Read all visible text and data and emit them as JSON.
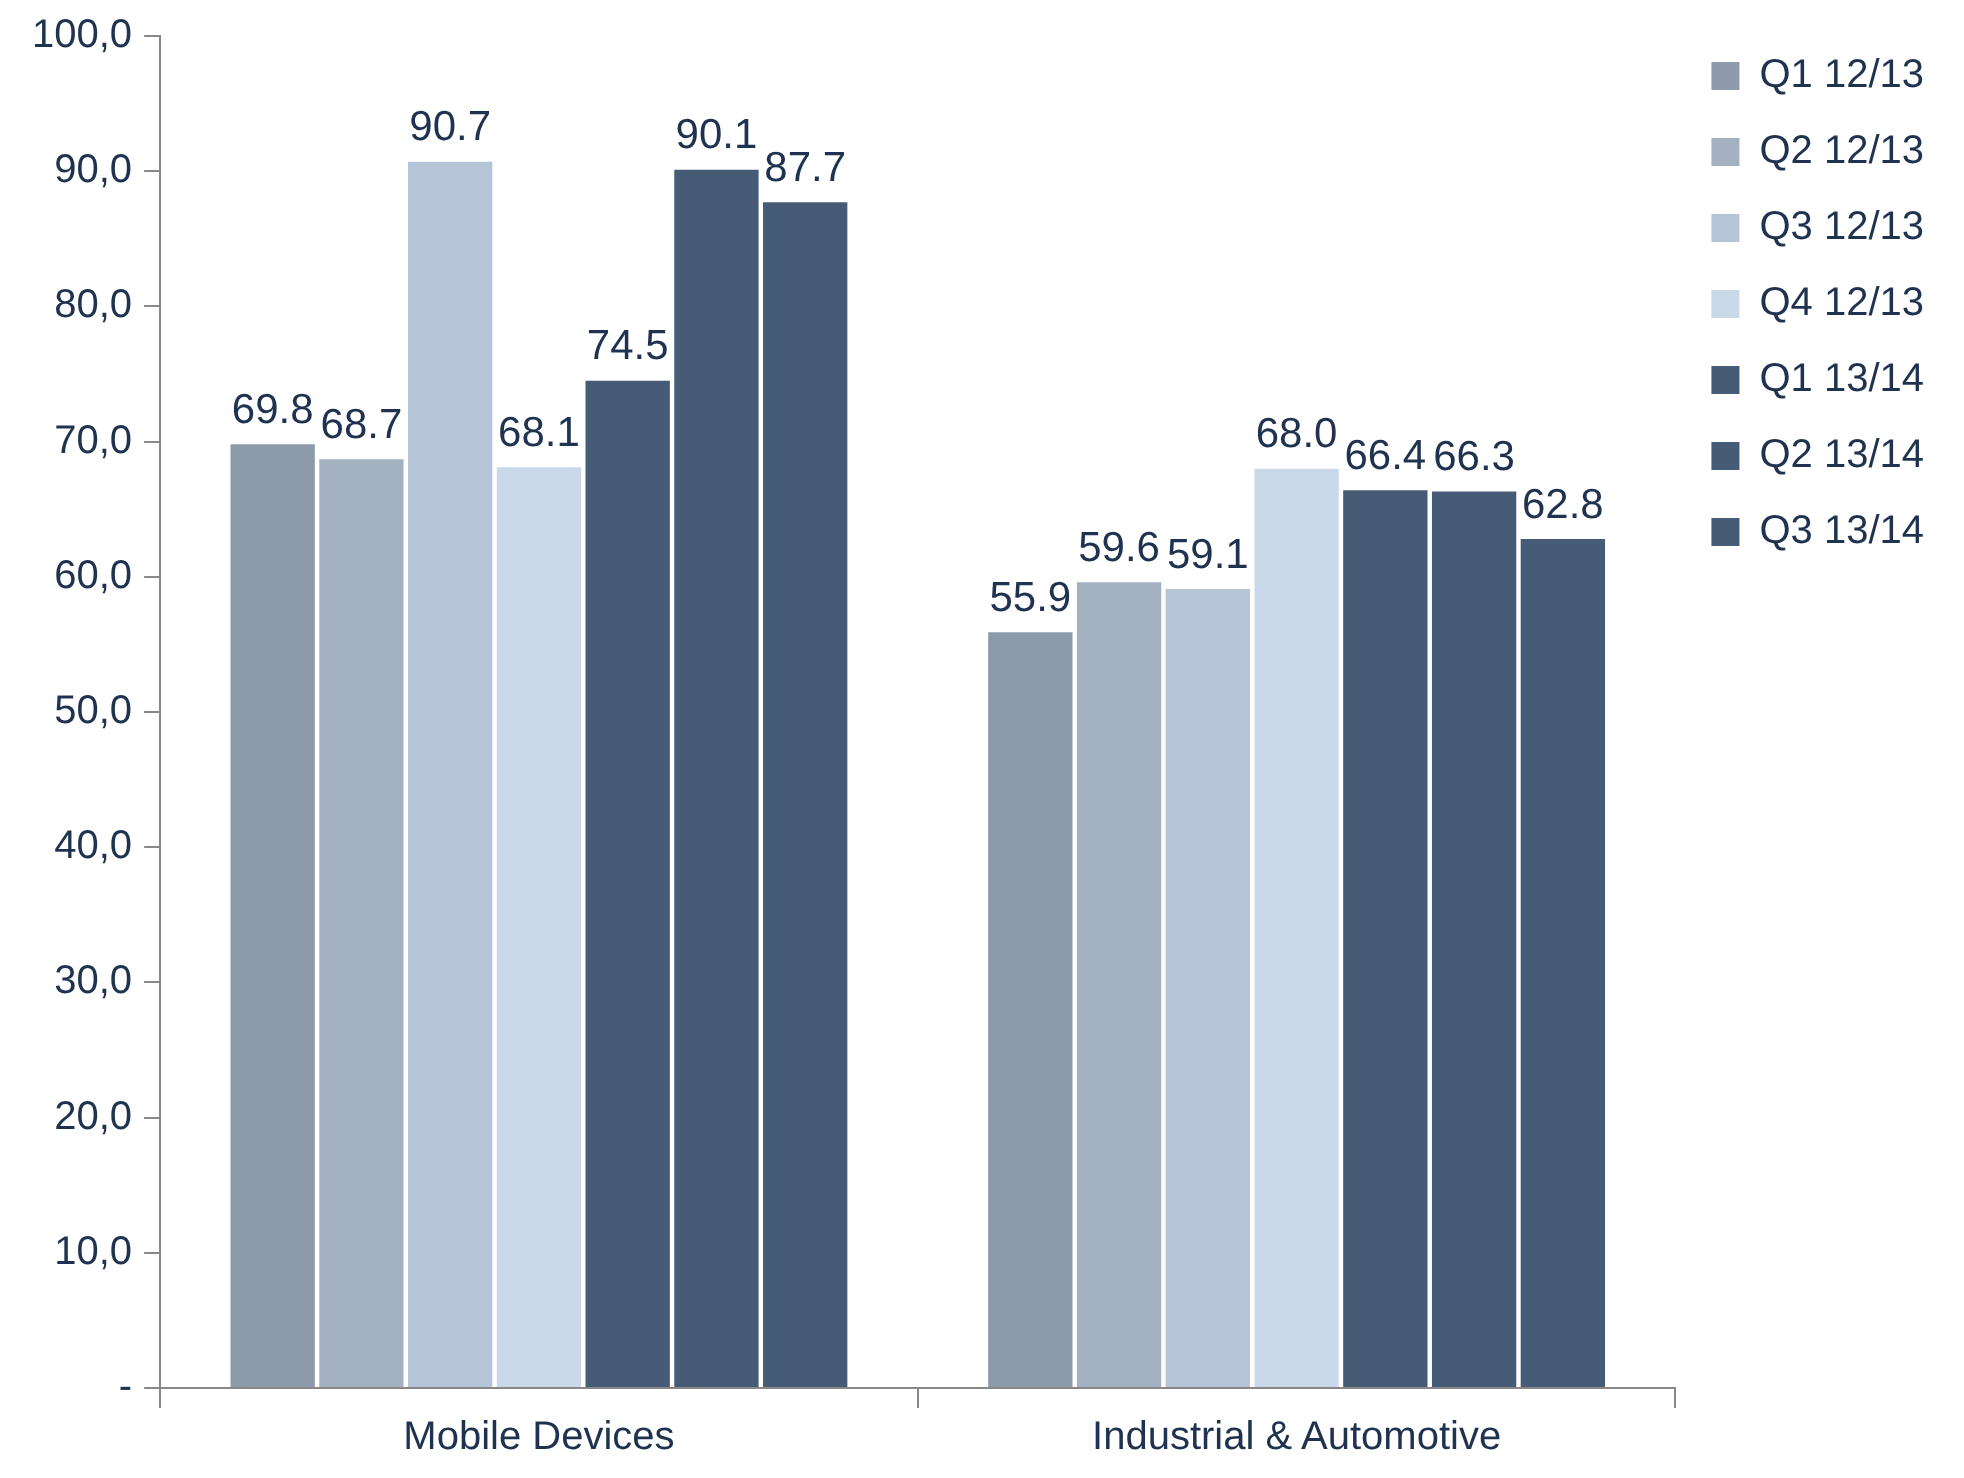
{
  "chart_data": {
    "type": "bar",
    "categories": [
      "Mobile Devices",
      "Industrial & Automotive"
    ],
    "series": [
      {
        "name": "Q1 12/13",
        "color": "#8c9aa9",
        "values": [
          69.8,
          55.9
        ],
        "value_labels": [
          "69.8",
          "55.9"
        ]
      },
      {
        "name": "Q2 12/13",
        "color": "#a4b1c1",
        "values": [
          68.7,
          59.6
        ],
        "value_labels": [
          "68.7",
          "59.6"
        ]
      },
      {
        "name": "Q3 12/13",
        "color": "#b5c5d7",
        "values": [
          90.7,
          59.1
        ],
        "value_labels": [
          "90.7",
          "59.1"
        ]
      },
      {
        "name": "Q4 12/13",
        "color": "#c9d9ea",
        "values": [
          68.1,
          68.0
        ],
        "value_labels": [
          "68.1",
          "68.0"
        ]
      },
      {
        "name": "Q1 13/14",
        "color": "#455b76",
        "values": [
          74.5,
          66.4
        ],
        "value_labels": [
          "74.5",
          "66.4"
        ]
      },
      {
        "name": "Q2 13/14",
        "color": "#455b76",
        "values": [
          90.1,
          66.3
        ],
        "value_labels": [
          "90.1",
          "66.3"
        ]
      },
      {
        "name": "Q3 13/14",
        "color": "#455b76",
        "values": [
          87.7,
          62.8
        ],
        "value_labels": [
          "87.7",
          "62.8"
        ]
      }
    ],
    "ylim": [
      0,
      100
    ],
    "yticks": [
      {
        "value": 0,
        "label": "-"
      },
      {
        "value": 10,
        "label": "10,0"
      },
      {
        "value": 20,
        "label": "20,0"
      },
      {
        "value": 30,
        "label": "30,0"
      },
      {
        "value": 40,
        "label": "40,0"
      },
      {
        "value": 50,
        "label": "50,0"
      },
      {
        "value": 60,
        "label": "60,0"
      },
      {
        "value": 70,
        "label": "70,0"
      },
      {
        "value": 80,
        "label": "80,0"
      },
      {
        "value": 90,
        "label": "90,0"
      },
      {
        "value": 100,
        "label": "100,0"
      }
    ],
    "grid": false,
    "legend": "right"
  }
}
